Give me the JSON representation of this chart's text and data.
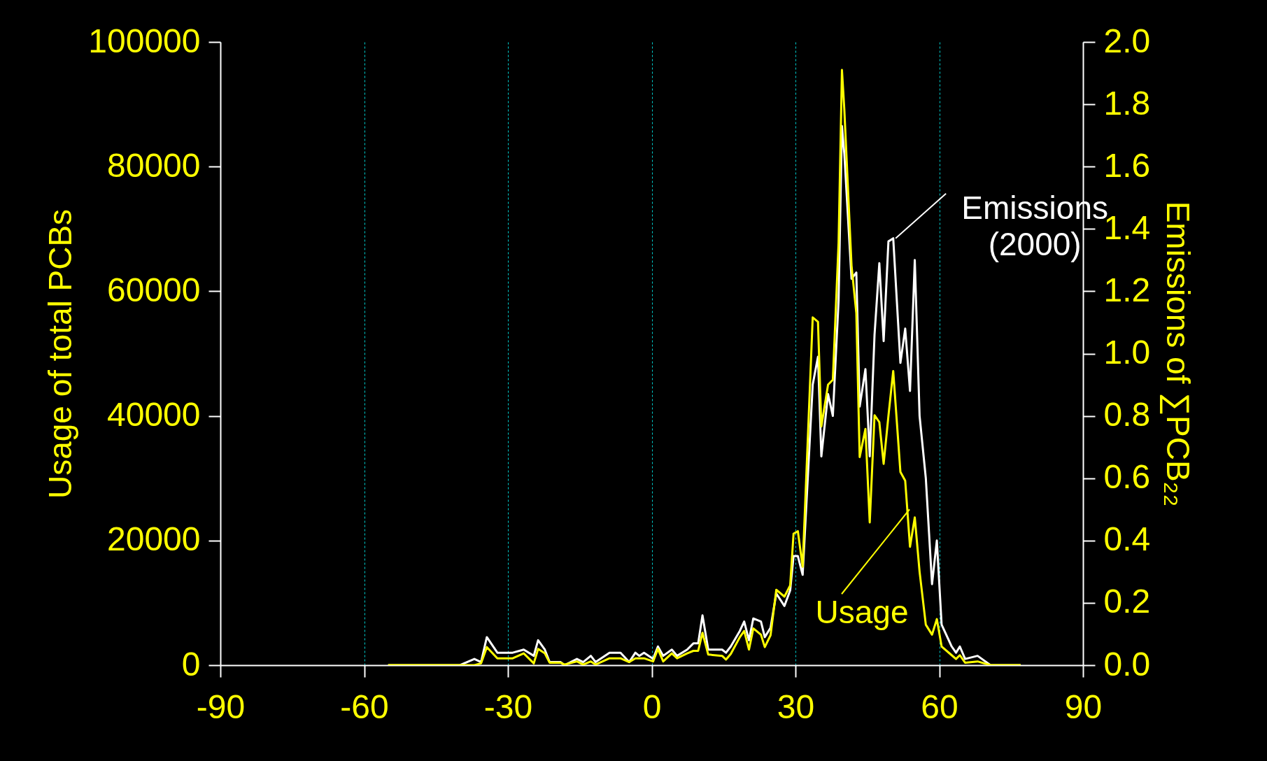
{
  "chart_data": {
    "type": "line",
    "ylabel": "Usage of total PCBs",
    "y2label": "Emissions of ∑PCB₂₂",
    "x": [
      -55,
      -40,
      -37,
      -35.6,
      -34.4,
      -32.2,
      -29,
      -26.7,
      -24.6,
      -23.7,
      -22.3,
      -21.3,
      -19,
      -18.2,
      -15.6,
      -14.3,
      -12.7,
      -11.7,
      -8.8,
      -6.5,
      -4.7,
      -3.4,
      -2.6,
      -1.6,
      0.3,
      1.3,
      2.4,
      4.2,
      5.3,
      7.4,
      8.7,
      9.7,
      10.6,
      11.8,
      14.7,
      15.5,
      16.5,
      18.4,
      19.3,
      20.3,
      21.2,
      22.8,
      23.6,
      24.8,
      26,
      27.7,
      28.9,
      29.6,
      30.5,
      31.5,
      33.6,
      34.7,
      35.4,
      36.8,
      37.8,
      39,
      39.7,
      40.2,
      41.7,
      42.7,
      43.4,
      44.6,
      45.5,
      46.5,
      47.5,
      48.4,
      49.4,
      50.4,
      51.9,
      52.9,
      53.9,
      54.9,
      55.9,
      57.2,
      58.5,
      59.5,
      60.5,
      62.6,
      63.5,
      64.3,
      65.4,
      68,
      70.7,
      77
    ],
    "series": [
      {
        "color": "#ffff00",
        "values": [
          0,
          0,
          0,
          300,
          2900,
          1100,
          1100,
          1900,
          300,
          2600,
          1900,
          400,
          400,
          100,
          600,
          100,
          600,
          100,
          1100,
          1100,
          500,
          1100,
          1100,
          1100,
          600,
          2600,
          600,
          1900,
          1100,
          1900,
          2300,
          2300,
          5200,
          1700,
          1500,
          900,
          1800,
          4500,
          5500,
          2500,
          5900,
          4900,
          2900,
          4800,
          12100,
          11000,
          12800,
          21100,
          21500,
          15800,
          55800,
          55100,
          38300,
          45000,
          45800,
          67800,
          95500,
          89100,
          64100,
          56500,
          33400,
          37900,
          22900,
          40100,
          39000,
          32300,
          40000,
          47200,
          31000,
          29600,
          19000,
          23700,
          15000,
          6500,
          4900,
          7400,
          3000,
          1600,
          1000,
          1600,
          400,
          600,
          0,
          0
        ]
      },
      {
        "color": "#ffffff",
        "axis": "y2",
        "values": [
          0,
          0,
          0.02,
          0.01,
          0.09,
          0.04,
          0.04,
          0.05,
          0.03,
          0.08,
          0.05,
          0.01,
          0.01,
          0,
          0.02,
          0.01,
          0.03,
          0.01,
          0.04,
          0.04,
          0.01,
          0.04,
          0.03,
          0.04,
          0.02,
          0.06,
          0.03,
          0.05,
          0.03,
          0.05,
          0.07,
          0.07,
          0.16,
          0.05,
          0.05,
          0.04,
          0.06,
          0.11,
          0.14,
          0.08,
          0.15,
          0.14,
          0.09,
          0.12,
          0.23,
          0.19,
          0.24,
          0.35,
          0.35,
          0.29,
          0.9,
          0.99,
          0.67,
          0.87,
          0.8,
          1.17,
          1.73,
          1.64,
          1.24,
          1.26,
          0.83,
          0.95,
          0.67,
          1.06,
          1.29,
          1.04,
          1.36,
          1.37,
          0.97,
          1.08,
          0.88,
          1.3,
          0.8,
          0.6,
          0.26,
          0.4,
          0.13,
          0.06,
          0.04,
          0.06,
          0.02,
          0.03,
          0,
          0
        ]
      }
    ],
    "xlim": [
      -90,
      90
    ],
    "xticks": [
      -90,
      -60,
      -30,
      0,
      30,
      60,
      90
    ],
    "ylim": [
      0,
      100000
    ],
    "yticks": [
      0,
      20000,
      40000,
      60000,
      80000,
      100000
    ],
    "y2lim": [
      0,
      2
    ],
    "y2ticks": [
      {
        "value": 0,
        "label": "0.0"
      },
      0.2,
      0.4,
      0.6,
      0.8,
      {
        "value": 1,
        "label": "1.0"
      },
      1.2,
      1.4,
      1.6,
      1.8,
      {
        "value": 2,
        "label": "2.0"
      }
    ],
    "grid": "x",
    "annotations": [
      {
        "text": "Usage",
        "x": 53.8,
        "y": 25000
      },
      {
        "text": "Emissions\n(2000)",
        "x": 50.9,
        "y": 68500
      }
    ]
  }
}
